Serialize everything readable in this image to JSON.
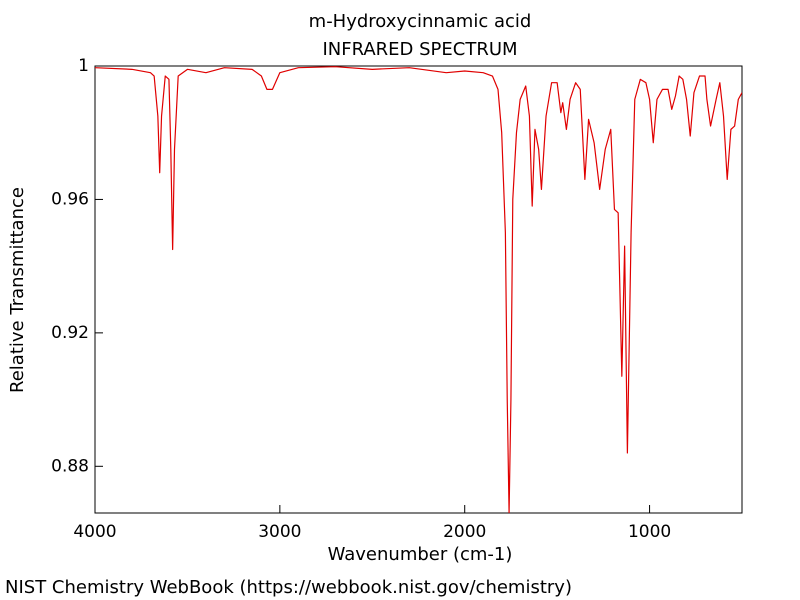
{
  "chart_data": {
    "type": "line",
    "title": "m-Hydroxycinnamic acid",
    "subtitle": "INFRARED SPECTRUM",
    "xlabel": "Wavenumber (cm-1)",
    "ylabel": "Relative Transmittance",
    "footer": "NIST Chemistry WebBook (https://webbook.nist.gov/chemistry)",
    "color": "#e00000",
    "xlim": [
      4000,
      500
    ],
    "xticks": [
      4000,
      3000,
      2000,
      1000
    ],
    "ylim": [
      0.866,
      1
    ],
    "yticks": [
      0.88,
      0.92,
      0.96,
      1
    ],
    "grid": false,
    "x": [
      4000,
      3800,
      3700,
      3680,
      3660,
      3650,
      3640,
      3620,
      3600,
      3590,
      3580,
      3570,
      3550,
      3500,
      3400,
      3300,
      3150,
      3100,
      3070,
      3040,
      3000,
      2900,
      2700,
      2500,
      2300,
      2100,
      2000,
      1900,
      1850,
      1820,
      1800,
      1780,
      1770,
      1760,
      1750,
      1740,
      1720,
      1700,
      1670,
      1650,
      1635,
      1620,
      1600,
      1585,
      1560,
      1530,
      1500,
      1480,
      1470,
      1450,
      1430,
      1400,
      1375,
      1350,
      1330,
      1300,
      1270,
      1240,
      1210,
      1190,
      1170,
      1150,
      1135,
      1120,
      1100,
      1080,
      1050,
      1020,
      1000,
      980,
      960,
      930,
      900,
      880,
      860,
      840,
      820,
      800,
      780,
      760,
      730,
      700,
      690,
      670,
      640,
      620,
      600,
      580,
      560,
      540,
      520,
      500
    ],
    "values": [
      0.9995,
      0.999,
      0.998,
      0.997,
      0.985,
      0.968,
      0.985,
      0.997,
      0.996,
      0.975,
      0.945,
      0.975,
      0.997,
      0.999,
      0.998,
      0.9995,
      0.999,
      0.997,
      0.993,
      0.993,
      0.998,
      0.9995,
      0.9998,
      0.999,
      0.9995,
      0.998,
      0.9985,
      0.998,
      0.997,
      0.993,
      0.98,
      0.95,
      0.9,
      0.866,
      0.9,
      0.96,
      0.98,
      0.99,
      0.994,
      0.985,
      0.958,
      0.981,
      0.975,
      0.963,
      0.985,
      0.995,
      0.995,
      0.986,
      0.989,
      0.981,
      0.99,
      0.995,
      0.993,
      0.966,
      0.984,
      0.977,
      0.963,
      0.975,
      0.981,
      0.957,
      0.956,
      0.907,
      0.946,
      0.884,
      0.95,
      0.99,
      0.996,
      0.995,
      0.99,
      0.977,
      0.99,
      0.993,
      0.993,
      0.987,
      0.991,
      0.997,
      0.996,
      0.99,
      0.979,
      0.992,
      0.997,
      0.997,
      0.99,
      0.982,
      0.99,
      0.995,
      0.985,
      0.966,
      0.981,
      0.982,
      0.99,
      0.992
    ]
  }
}
